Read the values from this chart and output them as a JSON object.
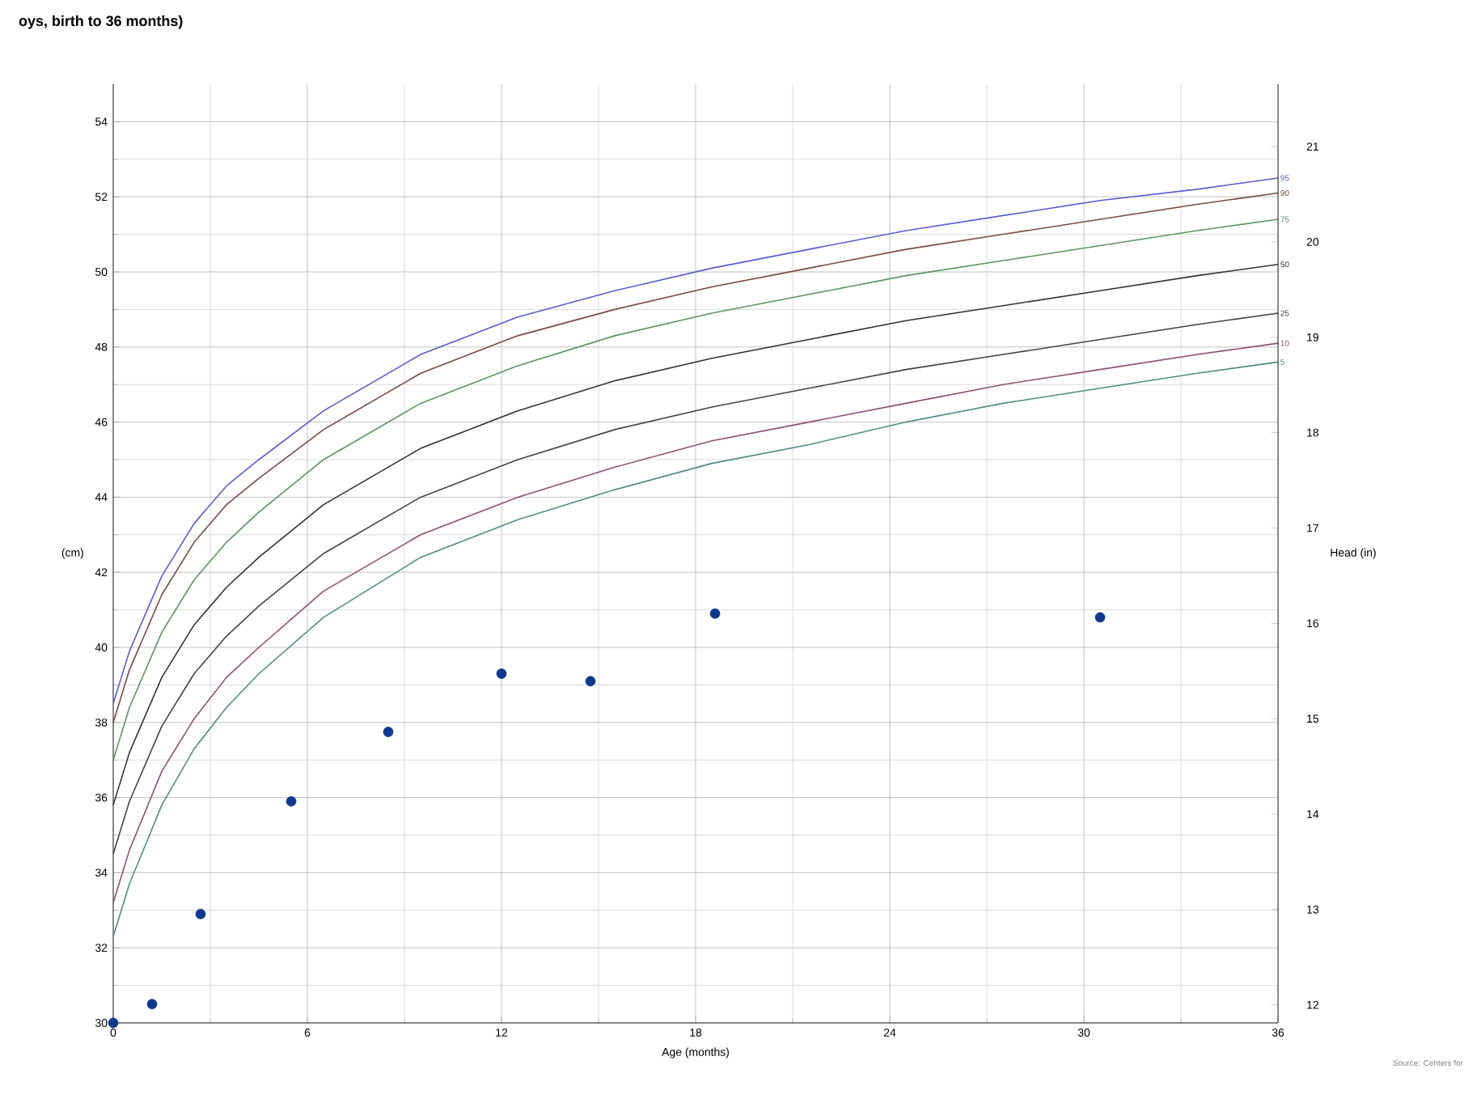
{
  "chart_data": {
    "type": "line",
    "title": "oys, birth to 36 months)",
    "xlabel": "Age (months)",
    "ylabel": "(cm)",
    "y2label": "Head (in)",
    "xlim": [
      0,
      36
    ],
    "xticks": [
      0,
      6,
      12,
      18,
      24,
      30,
      36
    ],
    "ylim": [
      30,
      55
    ],
    "yticks": [
      30,
      32,
      34,
      36,
      38,
      40,
      42,
      44,
      46,
      48,
      50,
      52,
      54
    ],
    "y2lim": [
      11.811,
      21.654
    ],
    "y2ticks": [
      12,
      13,
      14,
      15,
      16,
      17,
      18,
      19,
      20,
      21
    ],
    "grid": true,
    "annotations": [
      "Source: Centers for"
    ],
    "x": [
      0,
      0.5,
      1.5,
      2.5,
      3.5,
      4.5,
      6.5,
      9.5,
      12.5,
      15.5,
      18.5,
      21.5,
      24.5,
      27.5,
      30.5,
      33.5,
      36
    ],
    "series": [
      {
        "name": "95",
        "color": "#5a5ad2",
        "values": [
          38.5,
          39.9,
          41.9,
          43.3,
          44.3,
          45.0,
          46.3,
          47.8,
          48.8,
          49.5,
          50.1,
          50.6,
          51.1,
          51.5,
          51.9,
          52.2,
          52.5
        ]
      },
      {
        "name": "90",
        "color": "#7a4a44",
        "values": [
          38.0,
          39.4,
          41.4,
          42.8,
          43.8,
          44.5,
          45.8,
          47.3,
          48.3,
          49.0,
          49.6,
          50.1,
          50.6,
          51.0,
          51.4,
          51.8,
          52.1
        ]
      },
      {
        "name": "75",
        "color": "#5a955e",
        "values": [
          37.0,
          38.4,
          40.4,
          41.8,
          42.8,
          43.6,
          45.0,
          46.5,
          47.5,
          48.3,
          48.9,
          49.4,
          49.9,
          50.3,
          50.7,
          51.1,
          51.4
        ]
      },
      {
        "name": "50",
        "color": "#333333",
        "values": [
          35.8,
          37.2,
          39.2,
          40.6,
          41.6,
          42.4,
          43.8,
          45.3,
          46.3,
          47.1,
          47.7,
          48.2,
          48.7,
          49.1,
          49.5,
          49.9,
          50.2
        ]
      },
      {
        "name": "25",
        "color": "#444444",
        "values": [
          34.5,
          35.9,
          37.9,
          39.3,
          40.3,
          41.1,
          42.5,
          44.0,
          45.0,
          45.8,
          46.4,
          46.9,
          47.4,
          47.8,
          48.2,
          48.6,
          48.9
        ]
      },
      {
        "name": "10",
        "color": "#8e4e72",
        "values": [
          33.2,
          34.6,
          36.7,
          38.1,
          39.2,
          40.0,
          41.5,
          43.0,
          44.0,
          44.8,
          45.5,
          46.0,
          46.5,
          47.0,
          47.4,
          47.8,
          48.1
        ]
      },
      {
        "name": "5",
        "color": "#4f8c84",
        "values": [
          32.3,
          33.7,
          35.8,
          37.3,
          38.4,
          39.3,
          40.8,
          42.4,
          43.4,
          44.2,
          44.9,
          45.4,
          46.0,
          46.5,
          46.9,
          47.3,
          47.6
        ]
      },
      {
        "type": "scatter",
        "color": "#0d3a8c",
        "x": [
          0,
          1.2,
          2.7,
          5.5,
          8.5,
          12,
          14.75,
          18.6,
          30.5
        ],
        "values": [
          30.0,
          30.5,
          32.9,
          35.9,
          37.75,
          39.3,
          39.1,
          40.9,
          40.8
        ]
      }
    ]
  }
}
